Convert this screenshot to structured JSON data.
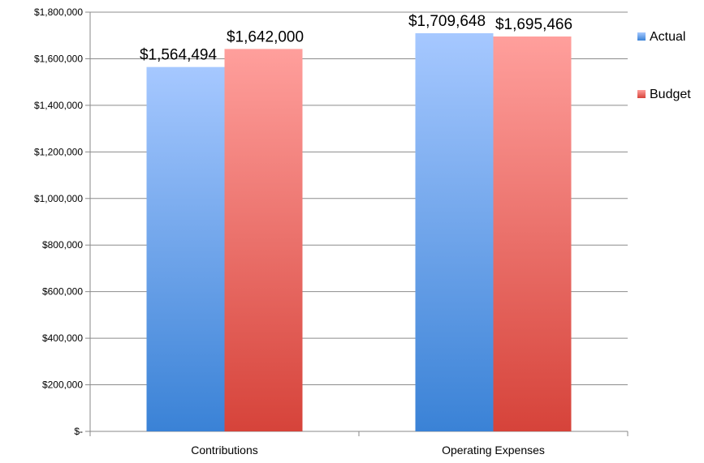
{
  "chart_data": {
    "type": "bar",
    "title": "",
    "xlabel": "",
    "ylabel": "",
    "categories": [
      "Contributions",
      "Operating Expenses"
    ],
    "series": [
      {
        "name": "Actual",
        "values": [
          1564494,
          1709648
        ],
        "labels": [
          "$1,564,494",
          "$1,709,648"
        ],
        "color": "#4a8ee0"
      },
      {
        "name": "Budget",
        "values": [
          1642000,
          1695466
        ],
        "labels": [
          "$1,642,000",
          "$1,695,466"
        ],
        "color": "#e0524a"
      }
    ],
    "ylim": [
      0,
      1800000
    ],
    "yticks": [
      0,
      200000,
      400000,
      600000,
      800000,
      1000000,
      1200000,
      1400000,
      1600000,
      1800000
    ],
    "ytick_labels": [
      "$-",
      "$200,000",
      "$400,000",
      "$600,000",
      "$800,000",
      "$1,000,000",
      "$1,200,000",
      "$1,400,000",
      "$1,600,000",
      "$1,800,000"
    ],
    "grid": true,
    "legend_position": "right"
  }
}
